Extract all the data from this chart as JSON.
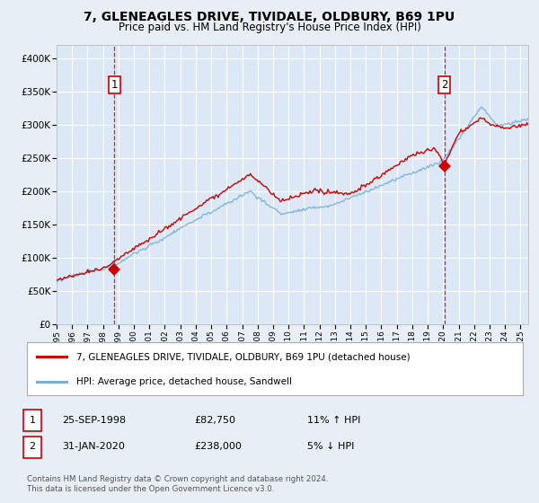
{
  "title": "7, GLENEAGLES DRIVE, TIVIDALE, OLDBURY, B69 1PU",
  "subtitle": "Price paid vs. HM Land Registry's House Price Index (HPI)",
  "background_color": "#e8eef5",
  "plot_bg_color": "#dce8f5",
  "grid_color": "#ffffff",
  "sale1_x": 1998.73,
  "sale1_price": 82750,
  "sale2_x": 2020.08,
  "sale2_price": 238000,
  "legend_line1": "7, GLENEAGLES DRIVE, TIVIDALE, OLDBURY, B69 1PU (detached house)",
  "legend_line2": "HPI: Average price, detached house, Sandwell",
  "footer_line1": "Contains HM Land Registry data © Crown copyright and database right 2024.",
  "footer_line2": "This data is licensed under the Open Government Licence v3.0.",
  "table_row1": [
    "1",
    "25-SEP-1998",
    "£82,750",
    "11% ↑ HPI"
  ],
  "table_row2": [
    "2",
    "31-JAN-2020",
    "£238,000",
    "5% ↓ HPI"
  ],
  "ylim_max": 420000,
  "xlim_start": 1995.0,
  "xlim_end": 2025.5,
  "red_color": "#cc0000",
  "blue_color": "#7ab0d4",
  "dashed_color": "#cc0000"
}
